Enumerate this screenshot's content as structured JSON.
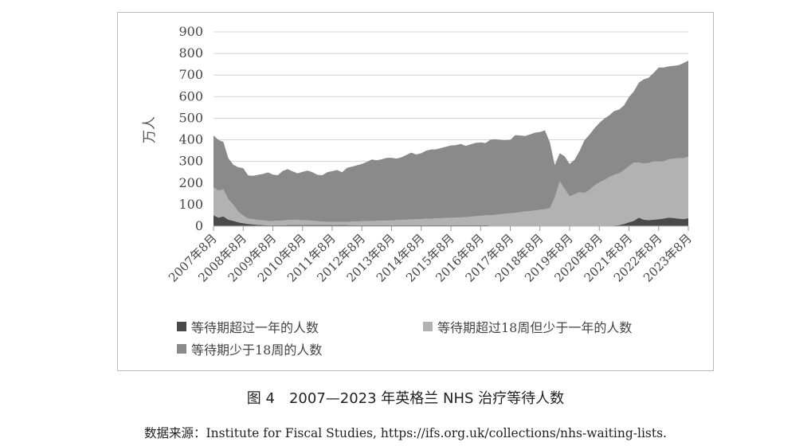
{
  "chart_data": {
    "type": "area",
    "stacked": true,
    "ylabel": "万人",
    "ylim": [
      0,
      900
    ],
    "yticks": [
      0,
      100,
      200,
      300,
      400,
      500,
      600,
      700,
      800,
      900
    ],
    "grid": true,
    "x_start": "2007-08",
    "x_end": "2023-08",
    "xtick_labels": [
      "2007年8月",
      "2008年8月",
      "2009年8月",
      "2010年8月",
      "2011年8月",
      "2012年8月",
      "2013年8月",
      "2014年8月",
      "2015年8月",
      "2016年8月",
      "2017年8月",
      "2018年8月",
      "2019年8月",
      "2020年8月",
      "2021年8月",
      "2022年8月",
      "2023年8月"
    ],
    "legend_position": "bottom",
    "x_month_offsets": [
      0,
      2,
      4,
      6,
      8,
      10,
      12,
      14,
      16,
      18,
      20,
      22,
      24,
      26,
      28,
      30,
      32,
      34,
      36,
      38,
      40,
      42,
      44,
      46,
      48,
      50,
      52,
      54,
      56,
      58,
      60,
      62,
      64,
      66,
      68,
      70,
      72,
      74,
      76,
      78,
      80,
      82,
      84,
      86,
      88,
      90,
      92,
      94,
      96,
      98,
      100,
      102,
      104,
      106,
      108,
      110,
      112,
      114,
      116,
      118,
      120,
      122,
      124,
      126,
      128,
      130,
      132,
      134,
      136,
      138,
      140,
      142,
      144,
      146,
      148,
      150,
      152,
      154,
      156,
      158,
      160,
      162,
      164,
      166,
      168,
      170,
      172,
      174,
      176,
      178,
      180,
      182,
      184,
      186,
      188,
      190,
      192
    ],
    "series": [
      {
        "name": "等待期超过一年的人数",
        "color": "#4a4a4a",
        "values": [
          50,
          40,
          45,
          30,
          25,
          18,
          14,
          10,
          8,
          6,
          5,
          4,
          4,
          4,
          4,
          5,
          5,
          5,
          5,
          5,
          5,
          5,
          5,
          5,
          5,
          5,
          5,
          5,
          4,
          4,
          4,
          4,
          4,
          4,
          4,
          4,
          4,
          4,
          4,
          4,
          4,
          4,
          4,
          4,
          4,
          4,
          4,
          4,
          4,
          4,
          4,
          4,
          4,
          4,
          4,
          4,
          3,
          3,
          3,
          3,
          3,
          3,
          3,
          3,
          3,
          3,
          3,
          3,
          3,
          3,
          3,
          3,
          3,
          3,
          3,
          3,
          3,
          3,
          3,
          3,
          3,
          3,
          5,
          10,
          18,
          25,
          40,
          30,
          28,
          30,
          32,
          35,
          40,
          38,
          35,
          33,
          37
        ]
      },
      {
        "name": "等待期超过18周但少于一年的人数",
        "color": "#b2b2b2",
        "values": [
          130,
          125,
          125,
          95,
          75,
          50,
          35,
          25,
          25,
          22,
          22,
          20,
          20,
          22,
          22,
          24,
          24,
          25,
          22,
          22,
          20,
          18,
          16,
          15,
          15,
          15,
          15,
          15,
          17,
          18,
          19,
          19,
          20,
          21,
          21,
          22,
          23,
          24,
          25,
          26,
          27,
          28,
          29,
          31,
          31,
          32,
          33,
          34,
          35,
          36,
          37,
          38,
          40,
          42,
          44,
          46,
          48,
          50,
          52,
          55,
          57,
          59,
          62,
          65,
          67,
          70,
          73,
          76,
          80,
          130,
          205,
          170,
          135,
          145,
          155,
          150,
          165,
          185,
          200,
          210,
          225,
          235,
          240,
          250,
          260,
          270,
          255,
          260,
          265,
          270,
          268,
          265,
          270,
          275,
          280,
          282,
          285
        ]
      },
      {
        "name": "等待期少于18周的人数",
        "color": "#8a8a8a",
        "values": [
          240,
          235,
          220,
          190,
          185,
          205,
          220,
          200,
          200,
          210,
          215,
          225,
          215,
          210,
          230,
          235,
          225,
          215,
          225,
          230,
          225,
          215,
          215,
          230,
          235,
          240,
          230,
          250,
          255,
          260,
          265,
          275,
          285,
          280,
          285,
          290,
          290,
          285,
          290,
          300,
          310,
          300,
          305,
          315,
          320,
          320,
          325,
          330,
          335,
          335,
          340,
          330,
          335,
          340,
          340,
          335,
          350,
          350,
          345,
          340,
          340,
          360,
          355,
          350,
          355,
          360,
          360,
          365,
          305,
          150,
          130,
          150,
          150,
          160,
          190,
          245,
          255,
          265,
          275,
          285,
          285,
          295,
          295,
          300,
          320,
          330,
          370,
          390,
          395,
          410,
          435,
          435,
          430,
          430,
          430,
          440,
          445
        ]
      }
    ]
  },
  "legend": {
    "item1": "等待期超过一年的人数",
    "item2": "等待期超过18周但少于一年的人数",
    "item3": "等待期少于18周的人数"
  },
  "caption": "图 4　2007—2023 年英格兰 NHS 治疗等待人数",
  "source": "数据来源：Institute for Fiscal Studies, https://ifs.org.uk/collections/nhs-waiting-lists."
}
